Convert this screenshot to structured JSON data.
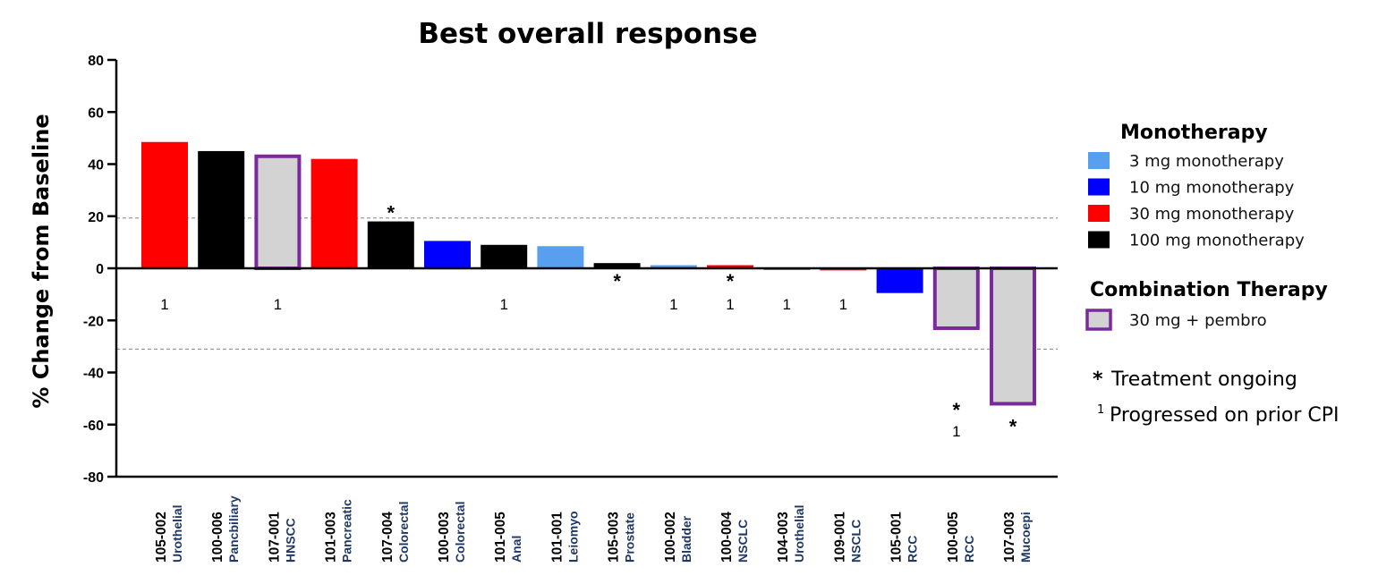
{
  "chart_data": {
    "type": "bar",
    "title": "Best overall response",
    "ylabel": "% Change from Baseline",
    "ylim": [
      -80,
      80
    ],
    "yticks": [
      80,
      60,
      40,
      20,
      0,
      -20,
      -40,
      -60,
      -80
    ],
    "reference_lines": [
      20,
      -30
    ],
    "bars": [
      {
        "patient": "105-002",
        "tumor": "Urothelial",
        "value": 48.5,
        "group": "30 mg monotherapy",
        "ongoing": false,
        "note": "1"
      },
      {
        "patient": "100-006",
        "tumor": "Pancbiliary",
        "value": 45,
        "group": "100 mg monotherapy",
        "ongoing": false,
        "note": ""
      },
      {
        "patient": "107-001",
        "tumor": "HNSCC",
        "value": 43,
        "group": "30 mg + pembro",
        "ongoing": false,
        "note": "1"
      },
      {
        "patient": "101-003",
        "tumor": "Pancreatic",
        "value": 42,
        "group": "30 mg monotherapy",
        "ongoing": false,
        "note": ""
      },
      {
        "patient": "107-004",
        "tumor": "Colorectal",
        "value": 18,
        "group": "100 mg monotherapy",
        "ongoing": true,
        "note": ""
      },
      {
        "patient": "100-003",
        "tumor": "Colorectal",
        "value": 10.5,
        "group": "10 mg monotherapy",
        "ongoing": false,
        "note": ""
      },
      {
        "patient": "101-005",
        "tumor": "Anal",
        "value": 9,
        "group": "100 mg monotherapy",
        "ongoing": false,
        "note": "1"
      },
      {
        "patient": "101-001",
        "tumor": "Leiomyo",
        "value": 8.5,
        "group": "3 mg monotherapy",
        "ongoing": false,
        "note": ""
      },
      {
        "patient": "105-003",
        "tumor": "Prostate",
        "value": 2,
        "group": "100 mg monotherapy",
        "ongoing": true,
        "note": ""
      },
      {
        "patient": "100-002",
        "tumor": "Bladder",
        "value": 1.2,
        "group": "3 mg monotherapy",
        "ongoing": false,
        "note": "1"
      },
      {
        "patient": "100-004",
        "tumor": "NSCLC",
        "value": 1.2,
        "group": "30 mg monotherapy",
        "ongoing": true,
        "note": "1"
      },
      {
        "patient": "104-003",
        "tumor": "Urothelial",
        "value": -0.5,
        "group": "100 mg monotherapy",
        "ongoing": false,
        "note": "1"
      },
      {
        "patient": "109-001",
        "tumor": "NSCLC",
        "value": -0.8,
        "group": "30 mg monotherapy",
        "ongoing": false,
        "note": "1"
      },
      {
        "patient": "105-001",
        "tumor": "RCC",
        "value": -9.5,
        "group": "10 mg monotherapy",
        "ongoing": false,
        "note": ""
      },
      {
        "patient": "100-005",
        "tumor": "RCC",
        "value": -23,
        "group": "30 mg + pembro",
        "ongoing": true,
        "note": "1"
      },
      {
        "patient": "107-003",
        "tumor": "Mucoepi",
        "value": -52,
        "group": "30 mg + pembro",
        "ongoing": true,
        "note": ""
      }
    ],
    "legend": {
      "placement": "right",
      "sections": [
        {
          "heading": "Monotherapy",
          "items": [
            {
              "label": "3 mg monotherapy",
              "color": "#589fef"
            },
            {
              "label": "10 mg monotherapy",
              "color": "#0000ff"
            },
            {
              "label": "30 mg monotherapy",
              "color": "#ff0000"
            },
            {
              "label": "100 mg monotherapy",
              "color": "#000000"
            }
          ]
        },
        {
          "heading": "Combination Therapy",
          "items": [
            {
              "label": "30 mg + pembro",
              "color": "#d3d3d3",
              "border": "#7a2a9c"
            }
          ]
        }
      ],
      "footnotes": [
        {
          "marker": "*",
          "text": "Treatment ongoing"
        },
        {
          "marker": "1",
          "text": "Progressed on prior CPI"
        }
      ]
    },
    "colors": {
      "3 mg monotherapy": "#589fef",
      "10 mg monotherapy": "#0000ff",
      "30 mg monotherapy": "#ff0000",
      "100 mg monotherapy": "#000000",
      "30 mg + pembro": "#d3d3d3",
      "combo_border": "#7a2a9c"
    }
  }
}
